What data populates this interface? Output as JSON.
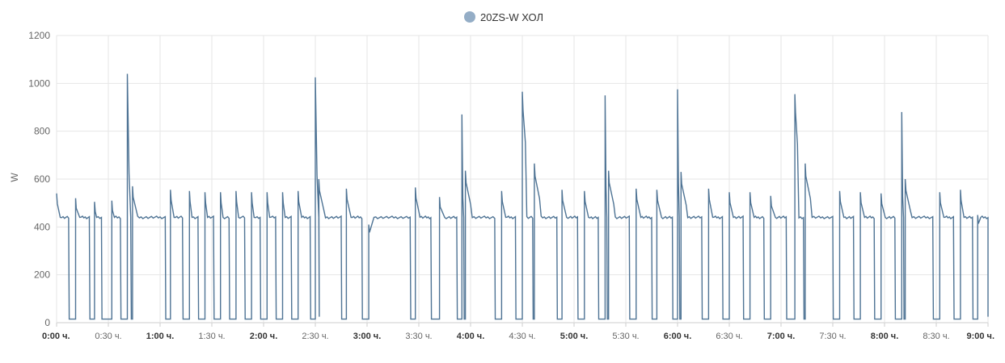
{
  "chart_data": {
    "type": "line",
    "legend": {
      "position": "top-center"
    },
    "xlabel": "",
    "ylabel": "W",
    "ylim": [
      0,
      1200
    ],
    "xlim_minutes": [
      0,
      540
    ],
    "y_ticks": [
      0,
      200,
      400,
      600,
      800,
      1000,
      1200
    ],
    "x_ticks": [
      {
        "minute": 0,
        "label": "0:00 ч.",
        "major": true
      },
      {
        "minute": 30,
        "label": "0:30 ч.",
        "major": false
      },
      {
        "minute": 60,
        "label": "1:00 ч.",
        "major": true
      },
      {
        "minute": 90,
        "label": "1:30 ч.",
        "major": false
      },
      {
        "minute": 120,
        "label": "2:00 ч.",
        "major": true
      },
      {
        "minute": 150,
        "label": "2:30 ч.",
        "major": false
      },
      {
        "minute": 180,
        "label": "3:00 ч.",
        "major": true
      },
      {
        "minute": 210,
        "label": "3:30 ч.",
        "major": false
      },
      {
        "minute": 240,
        "label": "4:00 ч.",
        "major": true
      },
      {
        "minute": 270,
        "label": "4:30 ч.",
        "major": false
      },
      {
        "minute": 300,
        "label": "5:00 ч.",
        "major": true
      },
      {
        "minute": 330,
        "label": "5:30 ч.",
        "major": false
      },
      {
        "minute": 360,
        "label": "6:00 ч.",
        "major": true
      },
      {
        "minute": 390,
        "label": "6:30 ч.",
        "major": false
      },
      {
        "minute": 420,
        "label": "7:00 ч.",
        "major": true
      },
      {
        "minute": 450,
        "label": "7:30 ч.",
        "major": false
      },
      {
        "minute": 480,
        "label": "8:00 ч.",
        "major": true
      },
      {
        "minute": 510,
        "label": "8:30 ч.",
        "major": false
      },
      {
        "minute": 540,
        "label": "9:00 ч.",
        "major": true
      }
    ],
    "grid": true,
    "series": [
      {
        "name": "20ZS-W ХОЛ",
        "color": "#4e7394",
        "legend_color": "#94adc6",
        "base_level": 440,
        "off_level": 15,
        "cycles_minutes": [
          {
            "start": 0,
            "end": 7,
            "on": 540
          },
          {
            "start": 11,
            "end": 19,
            "on": 520
          },
          {
            "start": 22,
            "end": 26,
            "on": 505
          },
          {
            "start": 32,
            "end": 37,
            "on": 510
          },
          {
            "start": 41,
            "end": 43,
            "on": 1040
          },
          {
            "start": 44,
            "end": 63,
            "on": 570
          },
          {
            "start": 66,
            "end": 73,
            "on": 555
          },
          {
            "start": 77,
            "end": 82,
            "on": 550
          },
          {
            "start": 86,
            "end": 91,
            "on": 545
          },
          {
            "start": 95,
            "end": 100,
            "on": 545
          },
          {
            "start": 104,
            "end": 109,
            "on": 550
          },
          {
            "start": 113,
            "end": 118,
            "on": 545
          },
          {
            "start": 122,
            "end": 127,
            "on": 545
          },
          {
            "start": 131,
            "end": 136,
            "on": 545
          },
          {
            "start": 140,
            "end": 147,
            "on": 550
          },
          {
            "start": 150,
            "end": 152,
            "on": 1025
          },
          {
            "start": 152,
            "end": 165,
            "on": 600
          },
          {
            "start": 168,
            "end": 177,
            "on": 560
          },
          {
            "start": 181,
            "end": 205,
            "on": 410
          },
          {
            "start": 208,
            "end": 217,
            "on": 565
          },
          {
            "start": 222,
            "end": 232,
            "on": 525
          },
          {
            "start": 235,
            "end": 236,
            "on": 870
          },
          {
            "start": 237,
            "end": 254,
            "on": 635
          },
          {
            "start": 258,
            "end": 266,
            "on": 550
          },
          {
            "start": 270,
            "end": 276,
            "on": 965
          },
          {
            "start": 277,
            "end": 290,
            "on": 665
          },
          {
            "start": 293,
            "end": 302,
            "on": 555
          },
          {
            "start": 306,
            "end": 314,
            "on": 550
          },
          {
            "start": 318,
            "end": 319,
            "on": 950
          },
          {
            "start": 320,
            "end": 332,
            "on": 635
          },
          {
            "start": 336,
            "end": 345,
            "on": 560
          },
          {
            "start": 348,
            "end": 357,
            "on": 555
          },
          {
            "start": 360,
            "end": 361,
            "on": 975
          },
          {
            "start": 362,
            "end": 374,
            "on": 630
          },
          {
            "start": 378,
            "end": 386,
            "on": 560
          },
          {
            "start": 390,
            "end": 398,
            "on": 545
          },
          {
            "start": 402,
            "end": 410,
            "on": 545
          },
          {
            "start": 414,
            "end": 423,
            "on": 530
          },
          {
            "start": 428,
            "end": 433,
            "on": 955
          },
          {
            "start": 434,
            "end": 450,
            "on": 665
          },
          {
            "start": 454,
            "end": 462,
            "on": 550
          },
          {
            "start": 466,
            "end": 474,
            "on": 545
          },
          {
            "start": 478,
            "end": 486,
            "on": 540
          },
          {
            "start": 490,
            "end": 491,
            "on": 880
          },
          {
            "start": 492,
            "end": 508,
            "on": 600
          },
          {
            "start": 512,
            "end": 520,
            "on": 545
          },
          {
            "start": 524,
            "end": 531,
            "on": 555
          },
          {
            "start": 534,
            "end": 540,
            "on": 450
          }
        ]
      }
    ]
  }
}
